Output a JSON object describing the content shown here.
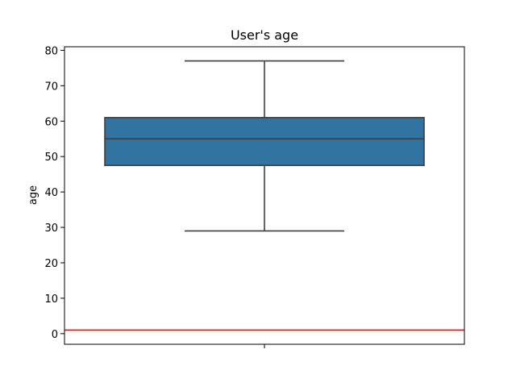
{
  "chart_data": {
    "type": "box",
    "title": "User's age",
    "xlabel": "",
    "ylabel": "age",
    "ylim": [
      -3,
      81
    ],
    "yticks": [
      0,
      10,
      20,
      30,
      40,
      50,
      60,
      70,
      80
    ],
    "grid": false,
    "legend": "none",
    "box": {
      "whisker_low": 29,
      "q1": 47.5,
      "median": 55,
      "q3": 61,
      "whisker_high": 77,
      "color": "#3274a1",
      "edge_color": "#3f3f3f"
    },
    "reference_line": {
      "y": 1,
      "color": "#ff0000"
    }
  }
}
